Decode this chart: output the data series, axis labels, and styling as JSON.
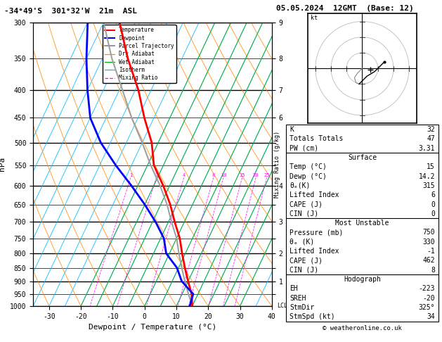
{
  "title_left": "-34°49'S  301°32'W  21m  ASL",
  "title_right": "05.05.2024  12GMT  (Base: 12)",
  "xlabel": "Dewpoint / Temperature (°C)",
  "ylabel_left": "hPa",
  "pressure_levels": [
    300,
    350,
    400,
    450,
    500,
    550,
    600,
    650,
    700,
    750,
    800,
    850,
    900,
    950,
    1000
  ],
  "temp_ticks": [
    -30,
    -20,
    -10,
    0,
    10,
    20,
    30,
    40
  ],
  "skew_factor": 0.45,
  "temperature_profile": {
    "pressure": [
      1000,
      950,
      900,
      850,
      800,
      750,
      700,
      650,
      600,
      550,
      500,
      450,
      400,
      350,
      300
    ],
    "temp": [
      15,
      13,
      10,
      7,
      4,
      1,
      -3,
      -7,
      -12,
      -18,
      -22,
      -28,
      -34,
      -42,
      -50
    ]
  },
  "dewpoint_profile": {
    "pressure": [
      1000,
      950,
      900,
      850,
      800,
      750,
      700,
      650,
      600,
      550,
      500,
      450,
      400,
      350,
      300
    ],
    "temp": [
      14.2,
      13.5,
      8.0,
      4.5,
      -1.0,
      -4.0,
      -9.0,
      -15.0,
      -22.0,
      -30.0,
      -38.0,
      -45.0,
      -50.0,
      -55.0,
      -60.0
    ]
  },
  "parcel_profile": {
    "pressure": [
      1000,
      950,
      900,
      850,
      800,
      750,
      700,
      650,
      600,
      550,
      500,
      450,
      400,
      350,
      300
    ],
    "temp": [
      15,
      12,
      9,
      6,
      3,
      0,
      -4,
      -8,
      -13,
      -19,
      -25,
      -32,
      -39,
      -47,
      -55
    ]
  },
  "colors": {
    "temperature": "#ff0000",
    "dewpoint": "#0000ff",
    "parcel": "#a0a0a0",
    "dry_adiabat": "#ff8c00",
    "wet_adiabat": "#00aa00",
    "isotherm": "#00bfff",
    "mixing_ratio": "#ff00ff"
  },
  "km_labels": {
    "300": "9",
    "400": "7",
    "500": "",
    "600": "",
    "700": "3",
    "800": "2",
    "900": "1",
    "1000": "LCL"
  },
  "copyright": "© weatheronline.co.uk"
}
